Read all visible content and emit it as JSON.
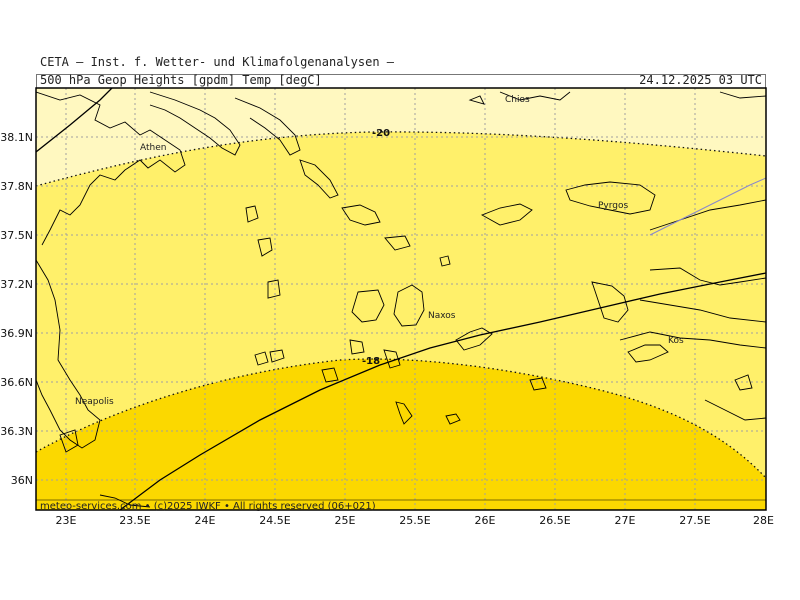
{
  "header": {
    "institute": "CETA — Inst. f. Wetter- und Klimafolgenanalysen —",
    "product": "500 hPa Geop Heights [gpdm] Temp [degC]",
    "valid_time": "24.12.2025 03 UTC"
  },
  "footer": {
    "credit": "meteo-services.com • (c)2025 IWKF • All rights reserved (06+021)"
  },
  "axes": {
    "lon_labels": [
      "23E",
      "23.5E",
      "24E",
      "24.5E",
      "25E",
      "25.5E",
      "26E",
      "26.5E",
      "27E",
      "27.5E",
      "28E"
    ],
    "lat_labels": [
      "38.1N",
      "37.8N",
      "37.5N",
      "37.2N",
      "36.9N",
      "36.6N",
      "36.3N",
      "36N"
    ]
  },
  "places": {
    "athen": "Athen",
    "chios": "Chios",
    "pyrgos": "Pyrgos",
    "naxos": "Naxos",
    "kos": "Kos",
    "neapolis": "Neapolis"
  },
  "contours": {
    "temp_minus20": "-20",
    "temp_minus18": "-18"
  },
  "colors": {
    "band_coldest": "#fff8c0",
    "band_middle": "#fff06a",
    "band_warmest": "#fbd800",
    "coastline": "#000000",
    "grid": "#a0a0a0"
  },
  "chart_data": {
    "type": "map",
    "field": "500 hPa temperature [degC]",
    "bands": [
      {
        "range": "< -20",
        "color": "#fff8c0"
      },
      {
        "range": "-20 to -18",
        "color": "#fff06a"
      },
      {
        "range": "> -18",
        "color": "#fbd800"
      }
    ],
    "isotherm_labels": [
      -20,
      -18
    ],
    "lon_range": [
      22.8,
      28
    ],
    "lat_range": [
      35.8,
      38.4
    ]
  }
}
